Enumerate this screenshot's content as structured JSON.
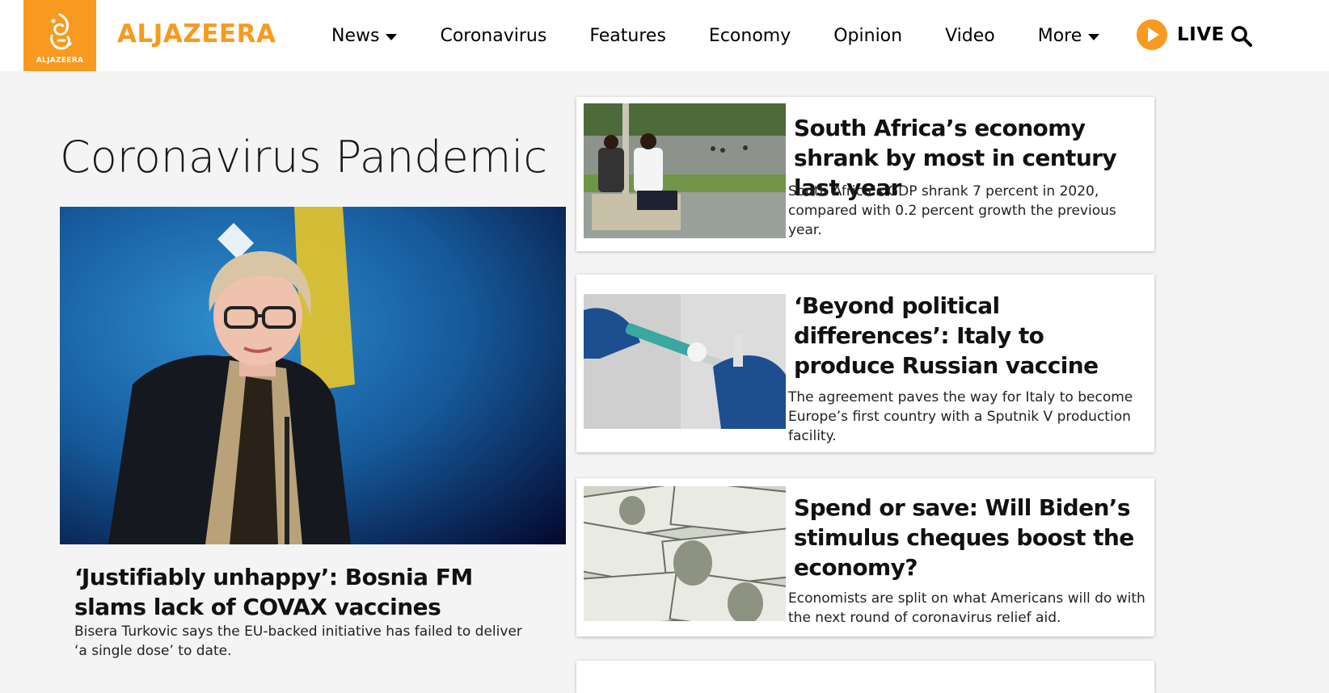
{
  "brand": {
    "logo_small_text": "ALJAZEERA",
    "wordmark": "ALJAZEERA",
    "accent_color": "#f79a1f"
  },
  "nav": {
    "items": [
      {
        "label": "News",
        "has_dropdown": true
      },
      {
        "label": "Coronavirus",
        "has_dropdown": false
      },
      {
        "label": "Features",
        "has_dropdown": false
      },
      {
        "label": "Economy",
        "has_dropdown": false
      },
      {
        "label": "Opinion",
        "has_dropdown": false
      },
      {
        "label": "Video",
        "has_dropdown": false
      },
      {
        "label": "More",
        "has_dropdown": true
      }
    ],
    "live_label": "LIVE",
    "live_icon": "play-circle-icon",
    "search_icon": "search-icon"
  },
  "page": {
    "title": "Coronavirus Pandemic"
  },
  "hero": {
    "title": "‘Justifiably unhappy’: Bosnia FM slams lack of COVAX vaccines",
    "description": "Bisera Turkovic says the EU-backed initiative has failed to deliver ‘a single dose’ to date."
  },
  "cards": [
    {
      "title": "South Africa’s economy shrank by most in century last year",
      "description": "South Africa’s GDP shrank 7 percent in 2020, compared with 0.2 percent growth the previous year."
    },
    {
      "title": "‘Beyond political differences’: Italy to produce Russian vaccine",
      "description": "The agreement paves the way for Italy to become Europe’s first country with a Sputnik V production facility."
    },
    {
      "title": "Spend or save: Will Biden’s stimulus cheques boost the economy?",
      "description": "Economists are split on what Americans will do with the next round of coronavirus relief aid."
    }
  ]
}
